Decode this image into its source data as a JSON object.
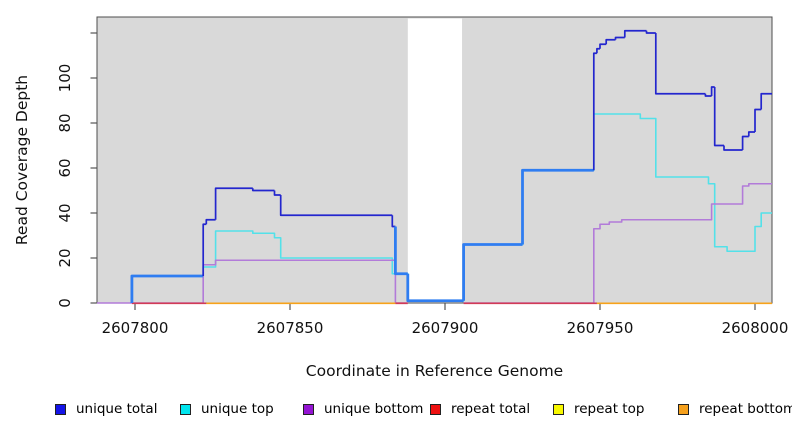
{
  "chart_data": {
    "type": "line",
    "subtype": "step",
    "title": "",
    "xlabel": "Coordinate in Reference Genome",
    "ylabel": "Read Coverage Depth",
    "x_range": [
      2607787.5,
      2608005.5
    ],
    "y_range_shown": [
      0,
      127
    ],
    "x_tick_values": [
      2607800,
      2607850,
      2607900,
      2607950,
      2608000
    ],
    "x_tick_labels": [
      "2607800",
      "2607850",
      "2607900",
      "2607950",
      "2608000"
    ],
    "y_tick_values": [
      0,
      20,
      40,
      60,
      80,
      100
    ],
    "y_tick_labels": [
      "0",
      "20",
      "40",
      "60",
      "80",
      "100"
    ],
    "y_extra_tick_values": [
      120
    ],
    "grid": "off",
    "legend_position": "bottom",
    "plot_background": "#D9D9D9",
    "box_color": "#4D4D4D",
    "masked_region": {
      "x_start": 2607888,
      "x_end": 2607905.5,
      "fill": "#FFFFFF"
    },
    "series": [
      {
        "label": "unique total",
        "legend_color": "#1414E8",
        "line_color": "#2326CE",
        "overlap_line_color": "#2F7DF1",
        "paths": [
          {
            "start_value": 0,
            "end": 2608005.5,
            "steps": [
              [
                2607799,
                12,
                1
              ],
              [
                2607822,
                35,
                0
              ],
              [
                2607823,
                37,
                0
              ],
              [
                2607826,
                51,
                0
              ],
              [
                2607838,
                50,
                0
              ],
              [
                2607845,
                48,
                0
              ],
              [
                2607847,
                39,
                0
              ],
              [
                2607883,
                34,
                0
              ],
              [
                2607884,
                13,
                1
              ],
              [
                2607888,
                1,
                1
              ],
              [
                2607906,
                26,
                1
              ],
              [
                2607925,
                59,
                1
              ],
              [
                2607948,
                111,
                0
              ],
              [
                2607949,
                113,
                0
              ],
              [
                2607950,
                115,
                0
              ],
              [
                2607952,
                117,
                0
              ],
              [
                2607955,
                118,
                0
              ],
              [
                2607958,
                121,
                0
              ],
              [
                2607965,
                120,
                0
              ],
              [
                2607968,
                93,
                0
              ],
              [
                2607984,
                92,
                0
              ],
              [
                2607986,
                96,
                0
              ],
              [
                2607987,
                70,
                0
              ],
              [
                2607990,
                68,
                0
              ],
              [
                2607996,
                74,
                0
              ],
              [
                2607998,
                76,
                0
              ],
              [
                2608000,
                86,
                0
              ],
              [
                2608002,
                93,
                0
              ]
            ]
          }
        ]
      },
      {
        "label": "unique top",
        "legend_color": "#00E5EE",
        "line_color": "#53E1E9",
        "paths": [
          {
            "start_value": 0,
            "end": 2608005.5,
            "steps": [
              [
                2607799,
                12
              ],
              [
                2607822,
                16
              ],
              [
                2607826,
                32
              ],
              [
                2607838,
                31
              ],
              [
                2607845,
                29
              ],
              [
                2607847,
                20
              ],
              [
                2607883,
                13
              ],
              [
                2607888,
                1
              ],
              [
                2607906,
                26
              ],
              [
                2607925,
                59
              ],
              [
                2607948,
                84
              ],
              [
                2607963,
                82
              ],
              [
                2607968,
                56
              ],
              [
                2607985,
                53
              ],
              [
                2607987,
                25
              ],
              [
                2607991,
                23
              ],
              [
                2608000,
                34
              ],
              [
                2608002,
                40
              ]
            ]
          }
        ]
      },
      {
        "label": "unique bottom",
        "legend_color": "#9414D3",
        "line_color": "#B27BD9",
        "paths": [
          {
            "start_value": 0,
            "end": 2607888,
            "steps": [
              [
                2607787.5,
                0
              ],
              [
                2607822,
                17
              ],
              [
                2607826,
                19
              ],
              [
                2607884,
                0
              ]
            ]
          },
          {
            "start_value": 0,
            "end": 2608005.5,
            "steps": [
              [
                2607906,
                0
              ],
              [
                2607948,
                33
              ],
              [
                2607950,
                35
              ],
              [
                2607953,
                36
              ],
              [
                2607957,
                37
              ],
              [
                2607986,
                44
              ],
              [
                2607996,
                52
              ],
              [
                2607998,
                53
              ]
            ]
          }
        ]
      },
      {
        "label": "repeat total",
        "legend_color": "#EE1111",
        "line_color": "#D23B55",
        "value": 0,
        "zero_segments": [
          [
            2607799,
            2607823
          ],
          [
            2607884,
            2607888
          ],
          [
            2607906,
            2607949
          ]
        ]
      },
      {
        "label": "repeat top",
        "legend_color": "#F8F800",
        "line_color": "#F8F800",
        "value": 0,
        "zero_segments": []
      },
      {
        "label": "repeat bottom",
        "legend_color": "#F5A01C",
        "line_color": "#F7A21A",
        "value": 0,
        "zero_segments": [
          [
            2607823,
            2607884
          ],
          [
            2607949,
            2608005.5
          ]
        ]
      }
    ]
  }
}
